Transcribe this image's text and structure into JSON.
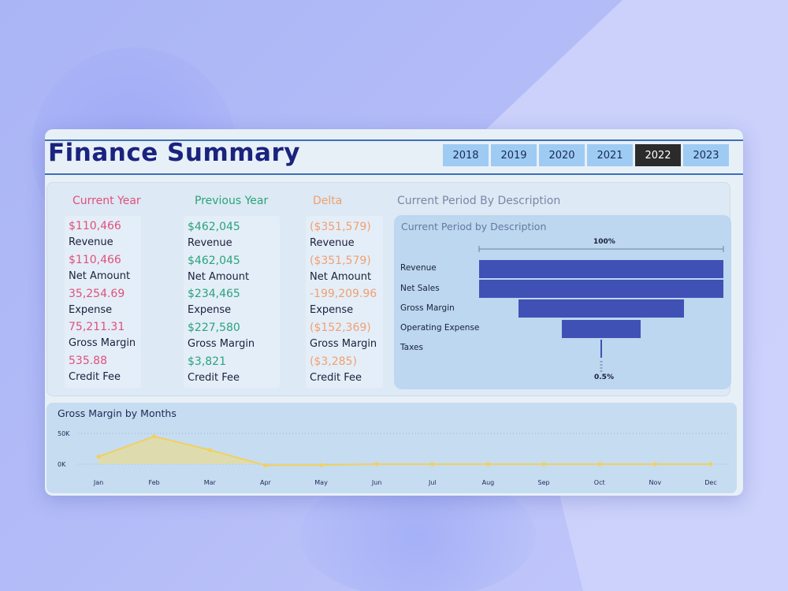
{
  "header": {
    "title": "Finance Summary",
    "years": [
      "2018",
      "2019",
      "2020",
      "2021",
      "2022",
      "2023"
    ],
    "selected_year": "2022"
  },
  "kpis": {
    "current": {
      "heading": "Current Year",
      "color": "#e0507a",
      "items": [
        {
          "value": "$110,466",
          "label": "Revenue"
        },
        {
          "value": "$110,466",
          "label": "Net Amount"
        },
        {
          "value": "35,254.69",
          "label": "Expense"
        },
        {
          "value": "75,211.31",
          "label": "Gross Margin"
        },
        {
          "value": "535.88",
          "label": "Credit Fee"
        }
      ]
    },
    "previous": {
      "heading": "Previous Year",
      "color": "#2aa37a",
      "items": [
        {
          "value": "$462,045",
          "label": "Revenue"
        },
        {
          "value": "$462,045",
          "label": "Net Amount"
        },
        {
          "value": "$234,465",
          "label": "Expense"
        },
        {
          "value": "$227,580",
          "label": "Gross Margin"
        },
        {
          "value": "$3,821",
          "label": "Credit Fee"
        }
      ]
    },
    "delta": {
      "heading": "Delta",
      "color": "#f0a070",
      "items": [
        {
          "value": "($351,579)",
          "label": "Revenue"
        },
        {
          "value": "($351,579)",
          "label": "Net Amount"
        },
        {
          "value": "-199,209.96",
          "label": "Expense"
        },
        {
          "value": "($152,369)",
          "label": "Gross Margin"
        },
        {
          "value": "($3,285)",
          "label": "Credit Fee"
        }
      ]
    }
  },
  "funnel": {
    "section_title": "Current Period By Description",
    "panel_title": "Current Period by Description",
    "top_label": "100%",
    "bottom_label": "0.5%",
    "bar_color": "#3f51b5",
    "categories": [
      "Revenue",
      "Net Sales",
      "Gross Margin",
      "Operating Expense",
      "Taxes"
    ],
    "values": [
      100,
      100,
      68,
      32,
      0.5
    ]
  },
  "chart_data": {
    "type": "area",
    "title": "Gross Margin by Months",
    "categories": [
      "Jan",
      "Feb",
      "Mar",
      "Apr",
      "May",
      "Jun",
      "Jul",
      "Aug",
      "Sep",
      "Oct",
      "Nov",
      "Dec"
    ],
    "series": [
      {
        "values": [
          12000,
          45000,
          23000,
          -2000,
          -1500,
          0,
          0,
          0,
          0,
          0,
          0,
          0
        ]
      }
    ],
    "yticks": [
      "50K",
      "0K"
    ],
    "ylim": [
      -5000,
      55000
    ],
    "line_color": "#f0d060",
    "fill_color": "#e6dc98"
  }
}
